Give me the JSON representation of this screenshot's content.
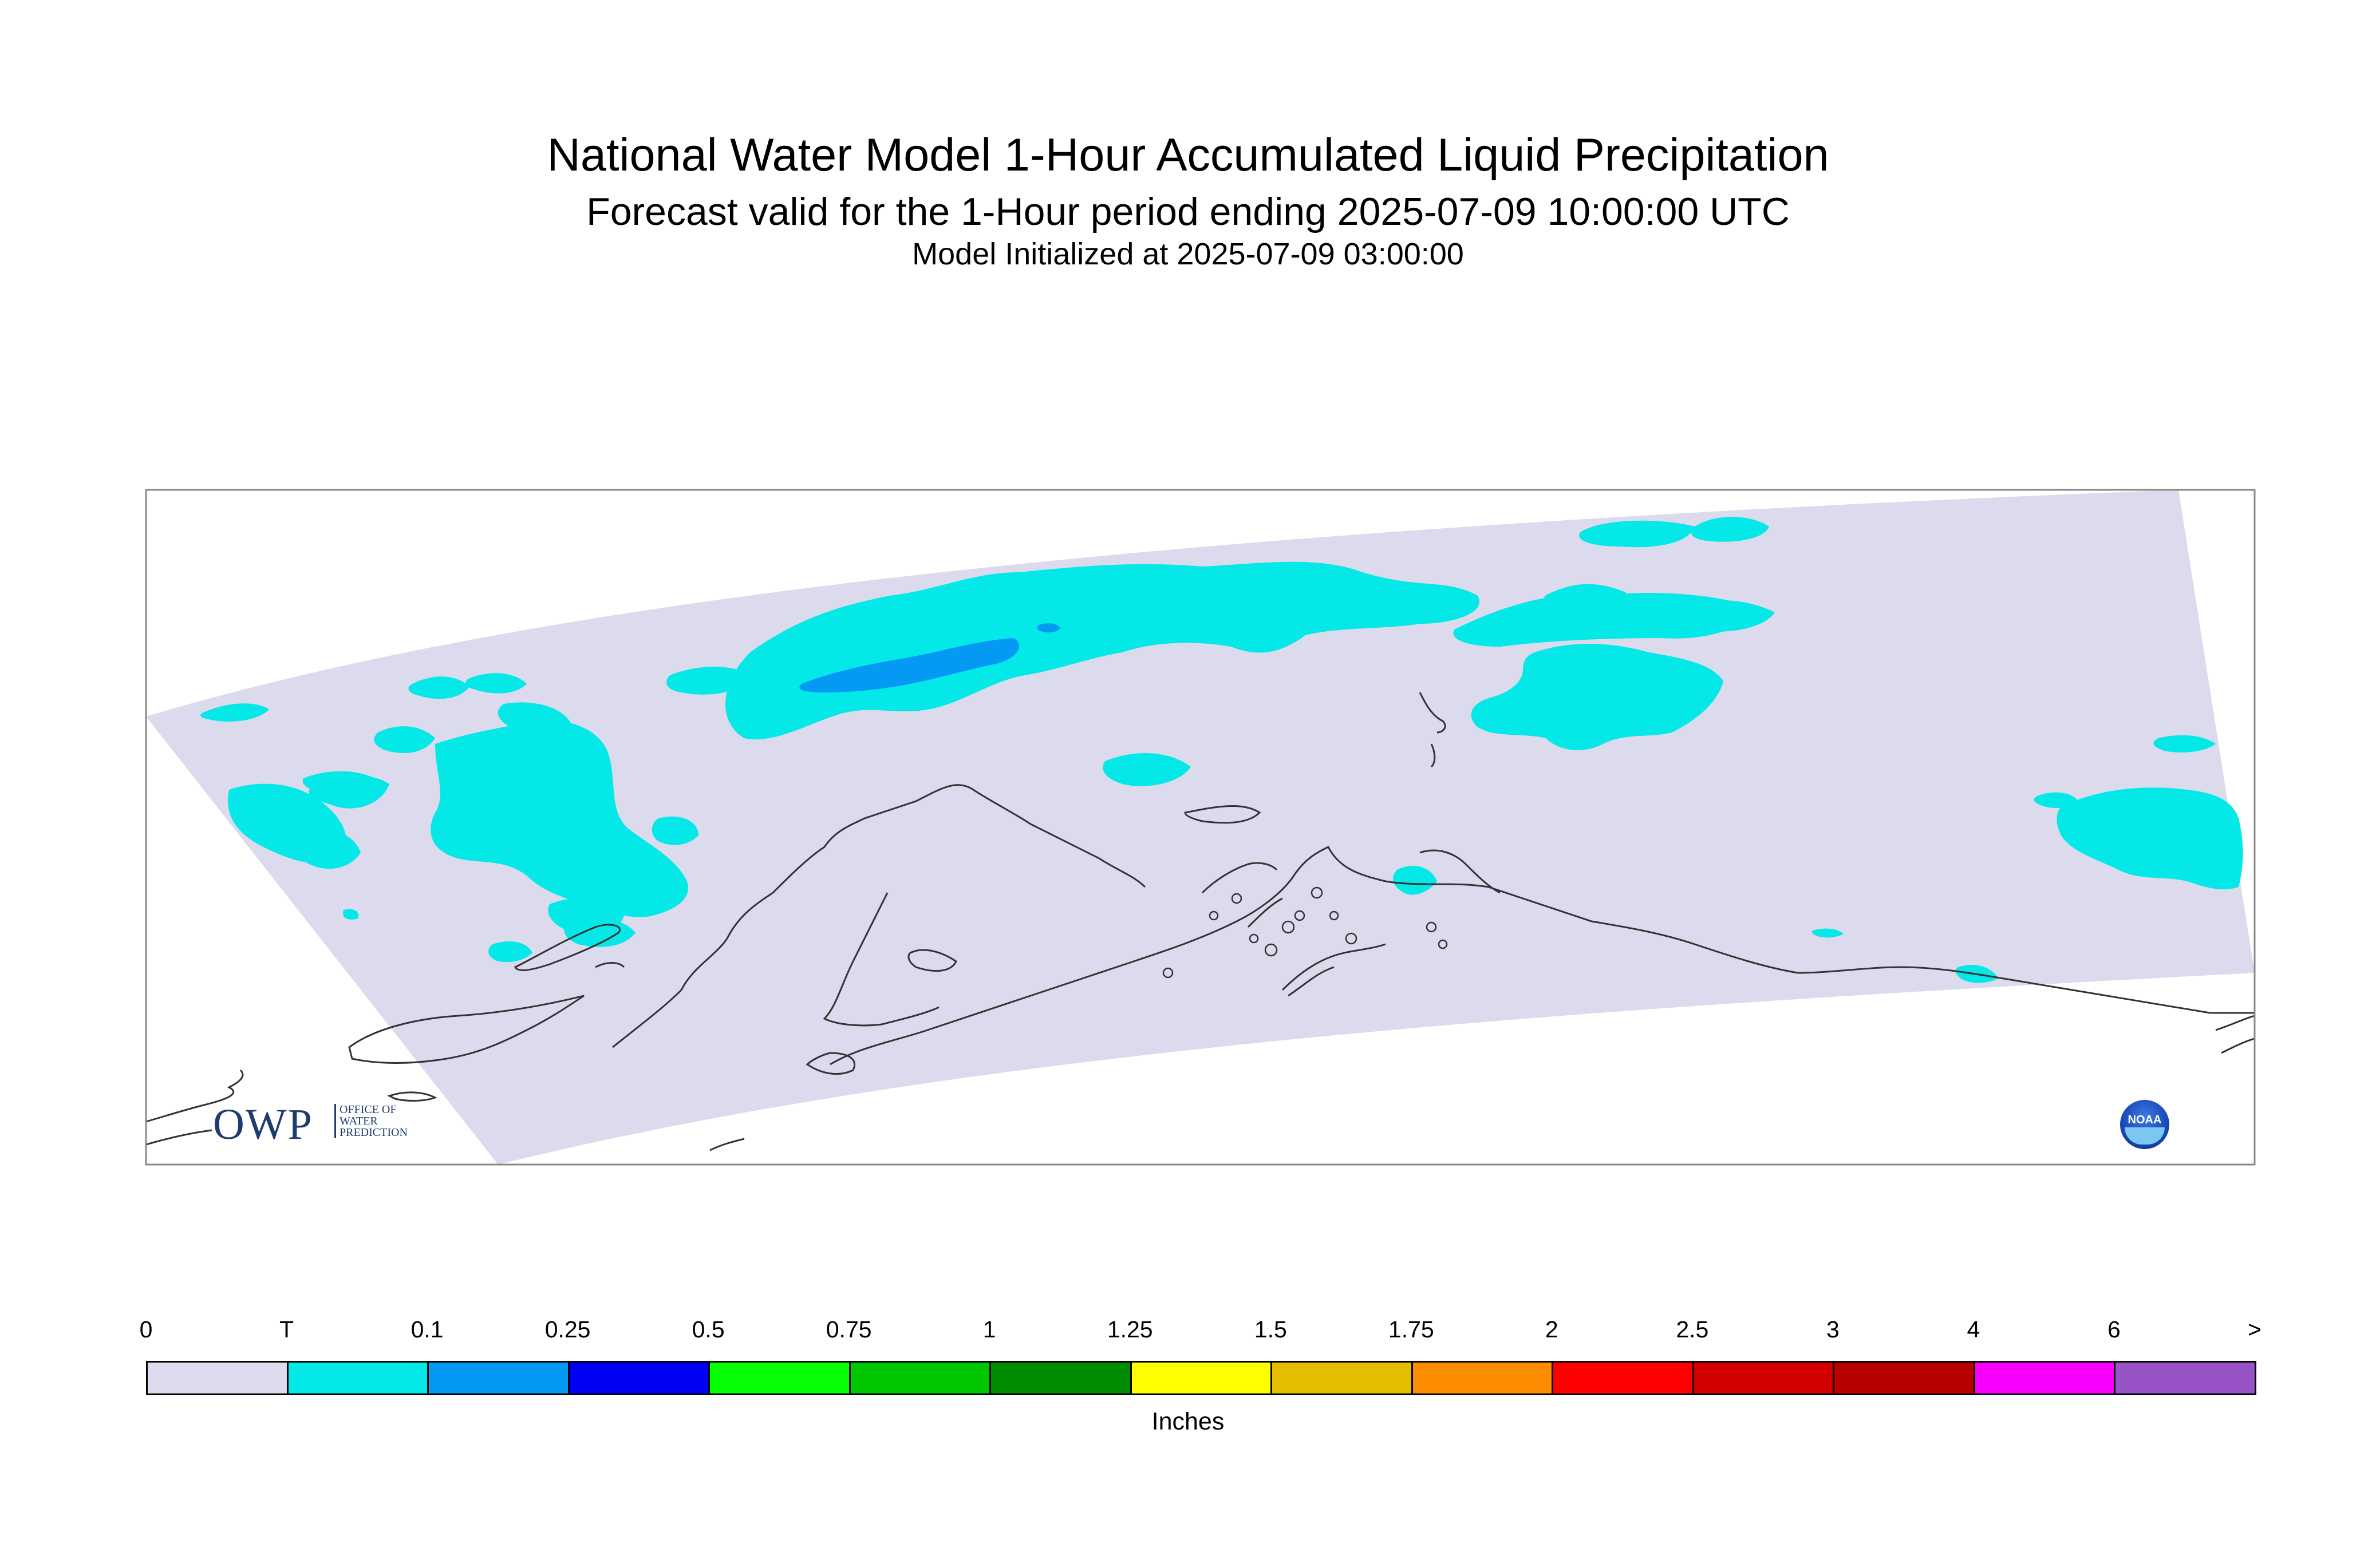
{
  "header": {
    "title": "National Water Model 1-Hour Accumulated Liquid Precipitation",
    "subtitle": "Forecast valid for the 1-Hour period ending 2025-07-09 10:00:00 UTC",
    "init": "Model Initialized at 2025-07-09 03:00:00"
  },
  "logos": {
    "owp_big": "OWP",
    "owp_small_line1": "OFFICE OF",
    "owp_small_line2": "WATER",
    "owp_small_line3": "PREDICTION",
    "noaa_text": "NOAA"
  },
  "colors": {
    "domain_fill": "#dbdbed",
    "trace": "#04e8e8",
    "light_blue": "#049af4",
    "coast": "#333333"
  },
  "legend": {
    "units": "Inches",
    "labels": [
      "0",
      "T",
      "0.1",
      "0.25",
      "0.5",
      "0.75",
      "1",
      "1.25",
      "1.5",
      "1.75",
      "2",
      "2.5",
      "3",
      "4",
      "6",
      ">"
    ],
    "colors": [
      "#dbdbed",
      "#04e8e8",
      "#049af4",
      "#0000f4",
      "#04fe04",
      "#00c800",
      "#008c00",
      "#fefe00",
      "#e4bc00",
      "#fc8c00",
      "#fe0000",
      "#d40000",
      "#b80000",
      "#f800fc",
      "#9854c6"
    ]
  }
}
